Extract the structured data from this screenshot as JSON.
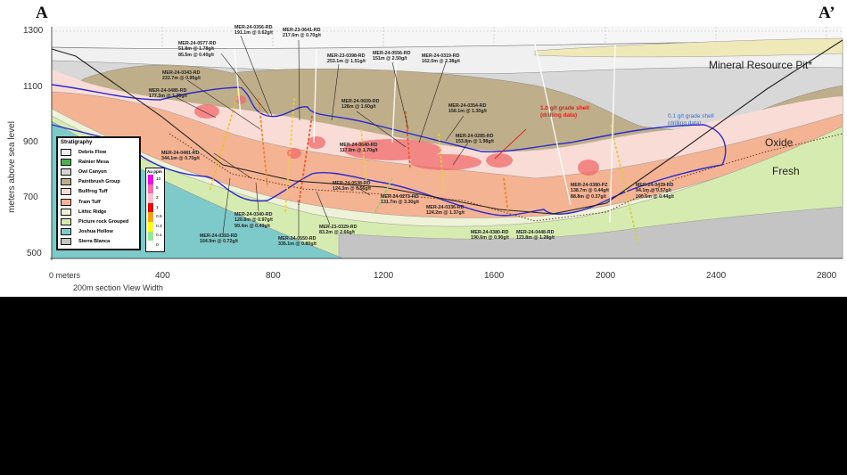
{
  "section": {
    "start_label": "A",
    "end_label": "A’"
  },
  "axes": {
    "y_label": "meters above sea level",
    "y_ticks": [
      "1300",
      "1100",
      "900",
      "700",
      "500"
    ],
    "x_ticks": [
      "0 meters",
      "400",
      "800",
      "1200",
      "1600",
      "2000",
      "2400",
      "2800"
    ],
    "x_sublabel": "200m section View Width"
  },
  "annotations": {
    "pit": "Mineral Resource Pit*",
    "oxide": "Oxide",
    "fresh": "Fresh",
    "shell_1": {
      "line1": "1.0 g/t grade shell",
      "line2": "(drilling data)",
      "color": "#e0201b"
    },
    "shell_01": {
      "line1": "0.1 g/t grade shell",
      "line2": "(drilling data)",
      "color": "#3a6fc8"
    }
  },
  "legend": {
    "title": "Stratigraphy",
    "items": [
      {
        "label": "Debris Flow",
        "color": "#f0f0f0"
      },
      {
        "label": "Rainier Mesa",
        "color": "#4caf50"
      },
      {
        "label": "Owl Canyon",
        "color": "#d4d4d4"
      },
      {
        "label": "Paintbrush Group",
        "color": "#bfae8a"
      },
      {
        "label": "Bullfrog Tuff",
        "color": "#f9dcd6"
      },
      {
        "label": "Tram Tuff",
        "color": "#f4b393"
      },
      {
        "label": "Lithic Ridge",
        "color": "#eef3d8"
      },
      {
        "label": "Picture rock Grouped",
        "color": "#d6ebb0"
      },
      {
        "label": "Joshua Hollow",
        "color": "#7ec9c9"
      },
      {
        "label": "Sierra Blanca",
        "color": "#c4c4c4"
      }
    ]
  },
  "au_scale": {
    "title": "Au ppm",
    "items": [
      {
        "label": "10",
        "color": "#ff00ff"
      },
      {
        "label": "5",
        "color": "#ff69b4"
      },
      {
        "label": "2",
        "color": "#ffc0cb"
      },
      {
        "label": "1",
        "color": "#ff0000"
      },
      {
        "label": "0.5",
        "color": "#ffa500"
      },
      {
        "label": "0.3",
        "color": "#ffff00"
      },
      {
        "label": "0.1",
        "color": "#90ee90"
      },
      {
        "label": "0",
        "color": "#ffffff"
      }
    ]
  },
  "drillholes": [
    {
      "name": "MER-24-0356-RD",
      "lines": [
        "191.1m @ 0.62g/t"
      ]
    },
    {
      "name": "MER-23-0641-RD",
      "lines": [
        "217.6m @ 0.70g/t"
      ]
    },
    {
      "name": "MER-24-0577-RD",
      "lines": [
        "51.8m @ 1.78g/t",
        "85.5m @ 0.40g/t"
      ]
    },
    {
      "name": "MER-24-0343-RD",
      "lines": [
        "222.7m @ 0.95g/t"
      ]
    },
    {
      "name": "MER-24-0485-RD",
      "lines": [
        "177.3m @ 1.35g/t"
      ]
    },
    {
      "name": "MER-23-0398-RD",
      "lines": [
        "253.1m @ 1.51g/t"
      ]
    },
    {
      "name": "MER-24-0556-RD",
      "lines": [
        "151m @ 2.50g/t"
      ]
    },
    {
      "name": "MER-24-0319-RD",
      "lines": [
        "162.0m @ 2.38g/t"
      ]
    },
    {
      "name": "MER-24-0609-RD",
      "lines": [
        "128m @ 1.60g/t"
      ]
    },
    {
      "name": "MER-24-0354-RD",
      "lines": [
        "156.1m @ 1.30g/t"
      ]
    },
    {
      "name": "MER-24-0640-RD",
      "lines": [
        "117.8m @ 1.70g/t"
      ]
    },
    {
      "name": "MER-24-0285-RD",
      "lines": [
        "153.8m @ 1.98g/t"
      ]
    },
    {
      "name": "MER-24-0481-RD",
      "lines": [
        "344.1m @ 0.70g/t"
      ]
    },
    {
      "name": "MER-24-0538-RD",
      "lines": [
        "124.3m @ 0.56g/t"
      ]
    },
    {
      "name": "MER-24-0273-RD",
      "lines": [
        "131.7m @ 3.30g/t"
      ]
    },
    {
      "name": "MER-24-0336-RD",
      "lines": [
        "124.2m @ 1.37g/t"
      ]
    },
    {
      "name": "MER-24-0340-RD",
      "lines": [
        "120.8m @ 0.97g/t",
        "99.4m @ 0.49g/t"
      ]
    },
    {
      "name": "MER-24-0393-RD",
      "lines": [
        "164.9m @ 0.72g/t"
      ]
    },
    {
      "name": "MER-24-0550-RD",
      "lines": [
        "335.1m @ 0.80g/t"
      ]
    },
    {
      "name": "MER-23-0329-RD",
      "lines": [
        "83.2m @ 2.66g/t"
      ]
    },
    {
      "name": "MER-24-0380-RD",
      "lines": [
        "190.6m @ 0.90g/t"
      ]
    },
    {
      "name": "MER-24-0448-RD",
      "lines": [
        "123.8m @ 1.28g/t"
      ]
    },
    {
      "name": "MER-24-0380-PZ",
      "lines": [
        "138.7m @ 0.44g/t",
        "88.8m @ 0.37g/t"
      ]
    },
    {
      "name": "MER-24-0479-RD",
      "lines": [
        "94.1m @ 0.57g/t",
        "100.6m @ 0.44g/t"
      ]
    }
  ]
}
